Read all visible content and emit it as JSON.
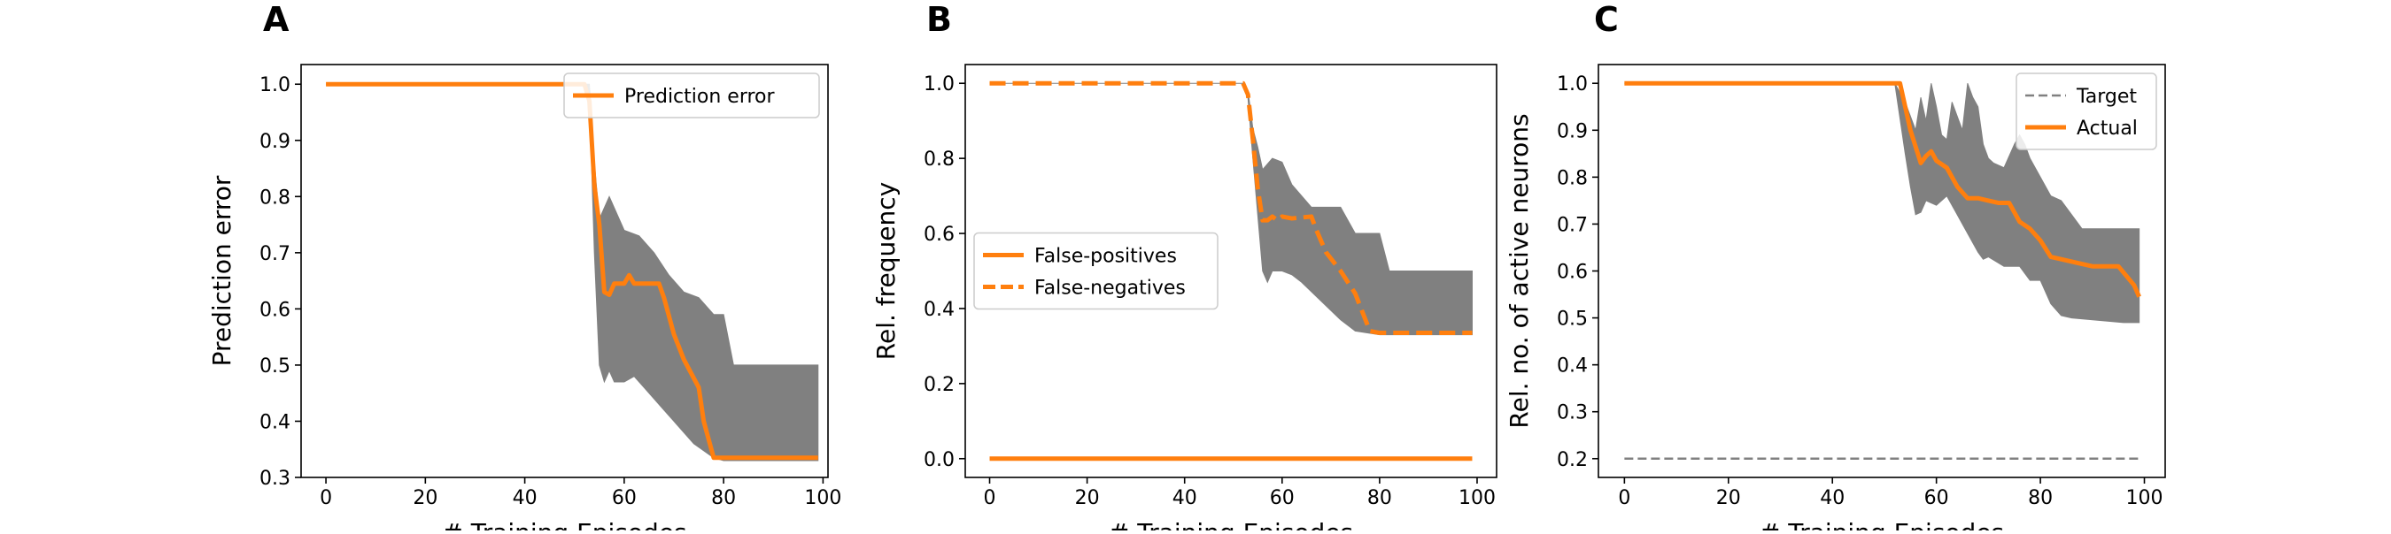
{
  "colors": {
    "orange": "#ff7f0e",
    "band": "#808080",
    "target": "#808080",
    "axis": "#000000"
  },
  "chart_data": [
    {
      "panel_label": "A",
      "type": "line",
      "xlabel": "# Training Episodes",
      "ylabel": "Prediction error",
      "xlim": [
        -5,
        101
      ],
      "ylim": [
        0.3,
        1.035
      ],
      "xticks": [
        0,
        20,
        40,
        60,
        80,
        100
      ],
      "xtick_labels": [
        "0",
        "20",
        "40",
        "60",
        "80",
        "100"
      ],
      "yticks": [
        0.3,
        0.4,
        0.5,
        0.6,
        0.7,
        0.8,
        0.9,
        1.0
      ],
      "ytick_labels": [
        "0.3",
        "0.4",
        "0.5",
        "0.6",
        "0.7",
        "0.8",
        "0.9",
        "1.0"
      ],
      "legend_position": "top-right",
      "bands": [
        {
          "upper": [
            [
              0,
              1.0
            ],
            [
              52,
              1.0
            ],
            [
              53,
              1.0
            ],
            [
              54,
              0.86
            ],
            [
              55,
              0.76
            ],
            [
              57,
              0.8
            ],
            [
              60,
              0.74
            ],
            [
              63,
              0.73
            ],
            [
              66,
              0.7
            ],
            [
              69,
              0.66
            ],
            [
              72,
              0.63
            ],
            [
              75,
              0.62
            ],
            [
              78,
              0.59
            ],
            [
              80,
              0.59
            ],
            [
              82,
              0.5
            ],
            [
              99,
              0.5
            ]
          ],
          "lower": [
            [
              0,
              1.0
            ],
            [
              52,
              1.0
            ],
            [
              53,
              0.98
            ],
            [
              54,
              0.7
            ],
            [
              55,
              0.5
            ],
            [
              56,
              0.47
            ],
            [
              57,
              0.49
            ],
            [
              58,
              0.47
            ],
            [
              60,
              0.47
            ],
            [
              62,
              0.48
            ],
            [
              64,
              0.46
            ],
            [
              66,
              0.44
            ],
            [
              68,
              0.42
            ],
            [
              70,
              0.4
            ],
            [
              74,
              0.36
            ],
            [
              78,
              0.335
            ],
            [
              80,
              0.33
            ],
            [
              99,
              0.33
            ]
          ]
        }
      ],
      "series": [
        {
          "name": "Prediction error",
          "style": "solid",
          "points": [
            [
              0,
              1.0
            ],
            [
              52,
              1.0
            ],
            [
              53,
              0.97
            ],
            [
              54,
              0.82
            ],
            [
              55,
              0.75
            ],
            [
              56,
              0.63
            ],
            [
              57,
              0.625
            ],
            [
              58,
              0.645
            ],
            [
              60,
              0.645
            ],
            [
              61,
              0.66
            ],
            [
              62,
              0.645
            ],
            [
              63,
              0.645
            ],
            [
              64,
              0.645
            ],
            [
              67,
              0.645
            ],
            [
              68,
              0.62
            ],
            [
              70,
              0.555
            ],
            [
              72,
              0.51
            ],
            [
              75,
              0.46
            ],
            [
              76,
              0.4
            ],
            [
              78,
              0.335
            ],
            [
              80,
              0.335
            ],
            [
              99,
              0.335
            ]
          ]
        }
      ]
    },
    {
      "panel_label": "B",
      "type": "line",
      "xlabel": "# Training Episodes",
      "ylabel": "Rel. frequency",
      "xlim": [
        -5,
        104
      ],
      "ylim": [
        -0.05,
        1.05
      ],
      "xticks": [
        0,
        20,
        40,
        60,
        80,
        100
      ],
      "xtick_labels": [
        "0",
        "20",
        "40",
        "60",
        "80",
        "100"
      ],
      "yticks": [
        0.0,
        0.2,
        0.4,
        0.6,
        0.8,
        1.0
      ],
      "ytick_labels": [
        "0.0",
        "0.2",
        "0.4",
        "0.6",
        "0.8",
        "1.0"
      ],
      "legend_position": "center-left",
      "bands": [
        {
          "upper": [
            [
              0,
              1.0
            ],
            [
              52,
              1.0
            ],
            [
              53,
              0.98
            ],
            [
              54,
              0.88
            ],
            [
              55,
              0.83
            ],
            [
              56,
              0.77
            ],
            [
              58,
              0.8
            ],
            [
              60,
              0.79
            ],
            [
              62,
              0.73
            ],
            [
              64,
              0.7
            ],
            [
              66,
              0.67
            ],
            [
              72,
              0.67
            ],
            [
              75,
              0.6
            ],
            [
              80,
              0.6
            ],
            [
              82,
              0.5
            ],
            [
              99,
              0.5
            ]
          ],
          "lower": [
            [
              0,
              1.0
            ],
            [
              52,
              1.0
            ],
            [
              53,
              0.96
            ],
            [
              54,
              0.8
            ],
            [
              55,
              0.65
            ],
            [
              56,
              0.5
            ],
            [
              57,
              0.47
            ],
            [
              58,
              0.5
            ],
            [
              60,
              0.5
            ],
            [
              62,
              0.49
            ],
            [
              64,
              0.47
            ],
            [
              68,
              0.42
            ],
            [
              72,
              0.37
            ],
            [
              75,
              0.34
            ],
            [
              80,
              0.33
            ],
            [
              99,
              0.33
            ]
          ]
        }
      ],
      "series": [
        {
          "name": "False-positives",
          "style": "solid",
          "points": [
            [
              0,
              0.0
            ],
            [
              99,
              0.0
            ]
          ]
        },
        {
          "name": "False-negatives",
          "style": "dashed",
          "points": [
            [
              0,
              1.0
            ],
            [
              52,
              1.0
            ],
            [
              53,
              0.97
            ],
            [
              54,
              0.85
            ],
            [
              55,
              0.72
            ],
            [
              56,
              0.635
            ],
            [
              57,
              0.635
            ],
            [
              58,
              0.645
            ],
            [
              59,
              0.635
            ],
            [
              60,
              0.645
            ],
            [
              62,
              0.64
            ],
            [
              66,
              0.645
            ],
            [
              67,
              0.61
            ],
            [
              69,
              0.55
            ],
            [
              72,
              0.5
            ],
            [
              75,
              0.44
            ],
            [
              78,
              0.34
            ],
            [
              80,
              0.335
            ],
            [
              99,
              0.335
            ]
          ]
        }
      ]
    },
    {
      "panel_label": "C",
      "type": "line",
      "xlabel": "# Training Episodes",
      "ylabel": "Rel. no. of active neurons",
      "xlim": [
        -5,
        104
      ],
      "ylim": [
        0.16,
        1.04
      ],
      "xticks": [
        0,
        20,
        40,
        60,
        80,
        100
      ],
      "xtick_labels": [
        "0",
        "20",
        "40",
        "60",
        "80",
        "100"
      ],
      "yticks": [
        0.2,
        0.3,
        0.4,
        0.5,
        0.6,
        0.7,
        0.8,
        0.9,
        1.0
      ],
      "ytick_labels": [
        "0.2",
        "0.3",
        "0.4",
        "0.5",
        "0.6",
        "0.7",
        "0.8",
        "0.9",
        "1.0"
      ],
      "legend_position": "top-right",
      "bands": [
        {
          "upper": [
            [
              0,
              1.0
            ],
            [
              52,
              1.0
            ],
            [
              54,
              0.96
            ],
            [
              56,
              0.9
            ],
            [
              57,
              0.97
            ],
            [
              58,
              0.92
            ],
            [
              59,
              1.0
            ],
            [
              60,
              0.95
            ],
            [
              61,
              0.89
            ],
            [
              62,
              0.88
            ],
            [
              63,
              0.96
            ],
            [
              64,
              0.93
            ],
            [
              65,
              0.9
            ],
            [
              66,
              1.0
            ],
            [
              67,
              0.97
            ],
            [
              68,
              0.95
            ],
            [
              69,
              0.87
            ],
            [
              70,
              0.84
            ],
            [
              71,
              0.83
            ],
            [
              73,
              0.82
            ],
            [
              75,
              0.87
            ],
            [
              76,
              0.89
            ],
            [
              77,
              0.87
            ],
            [
              78,
              0.84
            ],
            [
              80,
              0.8
            ],
            [
              82,
              0.76
            ],
            [
              84,
              0.75
            ],
            [
              86,
              0.72
            ],
            [
              88,
              0.69
            ],
            [
              99,
              0.69
            ]
          ],
          "lower": [
            [
              0,
              1.0
            ],
            [
              52,
              1.0
            ],
            [
              54,
              0.85
            ],
            [
              55,
              0.78
            ],
            [
              56,
              0.72
            ],
            [
              57,
              0.725
            ],
            [
              58,
              0.75
            ],
            [
              60,
              0.74
            ],
            [
              62,
              0.76
            ],
            [
              64,
              0.72
            ],
            [
              66,
              0.68
            ],
            [
              68,
              0.64
            ],
            [
              69,
              0.625
            ],
            [
              70,
              0.63
            ],
            [
              73,
              0.61
            ],
            [
              76,
              0.61
            ],
            [
              78,
              0.58
            ],
            [
              80,
              0.58
            ],
            [
              82,
              0.53
            ],
            [
              84,
              0.505
            ],
            [
              86,
              0.5
            ],
            [
              96,
              0.49
            ],
            [
              99,
              0.49
            ]
          ]
        }
      ],
      "series": [
        {
          "name": "Target",
          "style": "thin-dashed",
          "points": [
            [
              0,
              0.2
            ],
            [
              99,
              0.2
            ]
          ]
        },
        {
          "name": "Actual",
          "style": "solid",
          "points": [
            [
              0,
              1.0
            ],
            [
              53,
              1.0
            ],
            [
              55,
              0.9
            ],
            [
              57,
              0.83
            ],
            [
              58,
              0.845
            ],
            [
              59,
              0.855
            ],
            [
              60,
              0.835
            ],
            [
              62,
              0.82
            ],
            [
              64,
              0.78
            ],
            [
              66,
              0.755
            ],
            [
              68,
              0.755
            ],
            [
              70,
              0.75
            ],
            [
              72,
              0.745
            ],
            [
              74,
              0.745
            ],
            [
              76,
              0.705
            ],
            [
              78,
              0.69
            ],
            [
              80,
              0.665
            ],
            [
              82,
              0.63
            ],
            [
              84,
              0.625
            ],
            [
              88,
              0.615
            ],
            [
              90,
              0.61
            ],
            [
              95,
              0.61
            ],
            [
              98,
              0.57
            ],
            [
              99,
              0.545
            ]
          ]
        }
      ]
    }
  ]
}
